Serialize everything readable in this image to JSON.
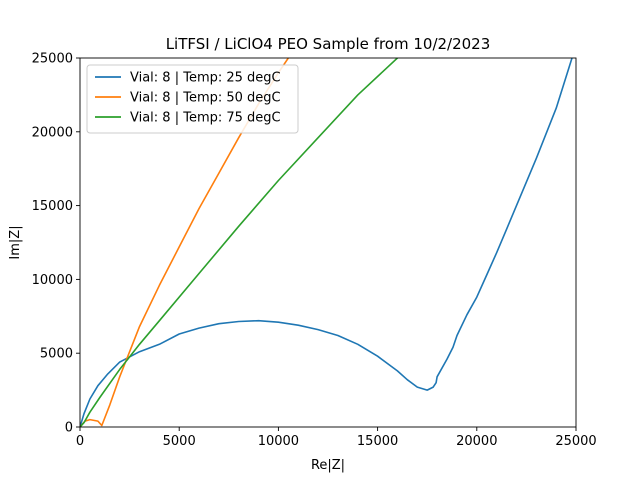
{
  "chart_data": {
    "type": "line",
    "title": "LiTFSI / LiClO4 PEO Sample from 10/2/2023",
    "xlabel": "Re|Z|",
    "ylabel": "Im|Z|",
    "xlim": [
      0,
      25000
    ],
    "ylim": [
      0,
      25000
    ],
    "xticks": [
      "0",
      "5000",
      "10000",
      "15000",
      "20000",
      "25000"
    ],
    "yticks": [
      "0",
      "5000",
      "10000",
      "15000",
      "20000",
      "25000"
    ],
    "grid": false,
    "legend_position": "top-left",
    "series": [
      {
        "name": "Vial: 8 | Temp: 25 degC",
        "color": "#1f77b4",
        "x": [
          0,
          200,
          500,
          900,
          1400,
          2000,
          3000,
          4000,
          5000,
          6000,
          7000,
          8000,
          9000,
          10000,
          11000,
          12000,
          13000,
          14000,
          15000,
          16000,
          16500,
          17000,
          17500,
          17800,
          17950,
          18000,
          18500,
          18800,
          19000,
          19500,
          20000,
          20500,
          21000,
          21500,
          22000,
          23000,
          24000,
          24800
        ],
        "y": [
          0,
          900,
          1900,
          2800,
          3600,
          4400,
          5100,
          5600,
          6300,
          6700,
          7000,
          7150,
          7200,
          7100,
          6900,
          6600,
          6200,
          5600,
          4800,
          3800,
          3200,
          2700,
          2500,
          2700,
          3000,
          3400,
          4600,
          5400,
          6200,
          7600,
          8800,
          10300,
          11800,
          13400,
          15000,
          18200,
          21600,
          25000
        ]
      },
      {
        "name": "Vial: 8 | Temp: 50 degC",
        "color": "#ff7f0e",
        "x": [
          0,
          250,
          500,
          900,
          1100,
          1500,
          2000,
          3000,
          4000,
          5000,
          6000,
          7000,
          8000,
          9000,
          10000,
          10500
        ],
        "y": [
          0,
          400,
          500,
          400,
          100,
          1500,
          3400,
          6800,
          9600,
          12200,
          14800,
          17200,
          19600,
          21900,
          24000,
          25000
        ]
      },
      {
        "name": "Vial: 8 | Temp: 75 degC",
        "color": "#2ca02c",
        "x": [
          0,
          200,
          500,
          1000,
          2000,
          3000,
          4000,
          6000,
          8000,
          10000,
          12000,
          14000,
          16000,
          16500
        ],
        "y": [
          0,
          300,
          1000,
          2000,
          3900,
          5600,
          7200,
          10400,
          13600,
          16700,
          19600,
          22500,
          25000,
          25700
        ]
      }
    ]
  }
}
